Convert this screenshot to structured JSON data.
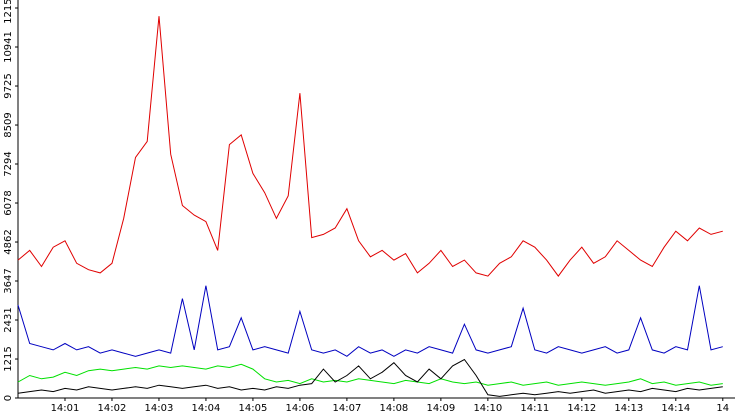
{
  "chart_data": {
    "type": "line",
    "xlim": [
      0,
      15.26
    ],
    "xticks": [
      {
        "value": 1,
        "label": "14:01"
      },
      {
        "value": 2,
        "label": "14:02"
      },
      {
        "value": 3,
        "label": "14:03"
      },
      {
        "value": 4,
        "label": "14:04"
      },
      {
        "value": 5,
        "label": "14:05"
      },
      {
        "value": 6,
        "label": "14:06"
      },
      {
        "value": 7,
        "label": "14:07"
      },
      {
        "value": 8,
        "label": "14:08"
      },
      {
        "value": 9,
        "label": "14:09"
      },
      {
        "value": 10,
        "label": "14:10"
      },
      {
        "value": 11,
        "label": "14:11"
      },
      {
        "value": 12,
        "label": "14:12"
      },
      {
        "value": 13,
        "label": "14:13"
      },
      {
        "value": 14,
        "label": "14:14"
      },
      {
        "value": 15,
        "label": "14"
      }
    ],
    "ylim": [
      0,
      12157
    ],
    "yticks": [
      0,
      1215,
      2431,
      3647,
      4862,
      6078,
      7294,
      8509,
      9725,
      10941,
      12157
    ],
    "x": [
      0,
      0.25,
      0.5,
      0.75,
      1,
      1.25,
      1.5,
      1.75,
      2,
      2.25,
      2.5,
      2.75,
      3,
      3.25,
      3.5,
      3.75,
      4,
      4.25,
      4.5,
      4.75,
      5,
      5.25,
      5.5,
      5.75,
      6,
      6.25,
      6.5,
      6.75,
      7,
      7.25,
      7.5,
      7.75,
      8,
      8.25,
      8.5,
      8.75,
      9,
      9.25,
      9.5,
      9.75,
      10,
      10.25,
      10.5,
      10.75,
      11,
      11.25,
      11.5,
      11.75,
      12,
      12.25,
      12.5,
      12.75,
      13,
      13.25,
      13.5,
      13.75,
      14,
      14.25,
      14.5,
      14.75,
      15
    ],
    "series": [
      {
        "color": "#e00000",
        "values": [
          4300,
          4600,
          4100,
          4700,
          4900,
          4200,
          4000,
          3900,
          4200,
          5600,
          7500,
          8000,
          11900,
          7600,
          6000,
          5700,
          5500,
          4600,
          7900,
          8200,
          7000,
          6400,
          5600,
          6300,
          9500,
          5000,
          5100,
          5300,
          5900,
          4900,
          4400,
          4600,
          4300,
          4500,
          3900,
          4200,
          4600,
          4100,
          4300,
          3900,
          3800,
          4200,
          4400,
          4900,
          4700,
          4300,
          3800,
          4300,
          4700,
          4200,
          4400,
          4900,
          4600,
          4300,
          4100,
          4700,
          5200,
          4900,
          5300,
          5100,
          5200
        ]
      },
      {
        "color": "#0000c0",
        "values": [
          2900,
          1700,
          1600,
          1500,
          1700,
          1500,
          1600,
          1400,
          1500,
          1400,
          1300,
          1400,
          1500,
          1400,
          3100,
          1500,
          3500,
          1500,
          1600,
          2500,
          1500,
          1600,
          1500,
          1400,
          2700,
          1500,
          1400,
          1500,
          1300,
          1600,
          1400,
          1500,
          1300,
          1500,
          1400,
          1600,
          1500,
          1400,
          2300,
          1500,
          1400,
          1500,
          1600,
          2800,
          1500,
          1400,
          1600,
          1500,
          1400,
          1500,
          1600,
          1400,
          1500,
          2500,
          1500,
          1400,
          1600,
          1500,
          3500,
          1500,
          1600
        ]
      },
      {
        "color": "#00e000",
        "values": [
          500,
          700,
          600,
          650,
          800,
          700,
          850,
          900,
          850,
          900,
          950,
          900,
          1000,
          950,
          1000,
          950,
          900,
          1000,
          950,
          1050,
          900,
          600,
          500,
          550,
          450,
          600,
          500,
          550,
          500,
          600,
          550,
          500,
          450,
          550,
          500,
          450,
          600,
          500,
          450,
          500,
          400,
          450,
          500,
          400,
          450,
          500,
          400,
          450,
          500,
          450,
          400,
          450,
          500,
          600,
          450,
          500,
          400,
          450,
          500,
          400,
          450
        ]
      },
      {
        "color": "#000000",
        "values": [
          150,
          200,
          250,
          200,
          300,
          250,
          350,
          300,
          250,
          300,
          350,
          300,
          400,
          350,
          300,
          350,
          400,
          300,
          350,
          250,
          300,
          250,
          350,
          300,
          400,
          450,
          900,
          500,
          700,
          1000,
          600,
          800,
          1100,
          700,
          500,
          900,
          600,
          1000,
          1200,
          700,
          100,
          50,
          100,
          150,
          100,
          150,
          200,
          150,
          200,
          250,
          150,
          200,
          250,
          200,
          300,
          250,
          200,
          300,
          250,
          300,
          350
        ]
      }
    ]
  }
}
